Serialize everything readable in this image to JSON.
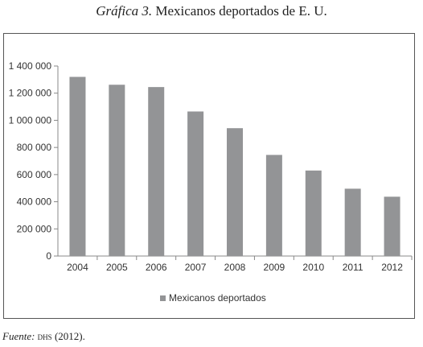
{
  "figure": {
    "label": "Gráfica 3.",
    "title": "Mexicanos deportados de E. U.",
    "source_label": "Fuente:",
    "source_org": "dhs",
    "source_year": "(2012)."
  },
  "chart_data": {
    "type": "bar",
    "categories": [
      "2004",
      "2005",
      "2006",
      "2007",
      "2008",
      "2009",
      "2010",
      "2011",
      "2012"
    ],
    "series": [
      {
        "name": "Mexicanos deportados",
        "values": [
          1320000,
          1262000,
          1245000,
          1065000,
          942000,
          745000,
          630000,
          496000,
          437000
        ],
        "color": "#939496"
      }
    ],
    "y_ticks": [
      "0",
      "200 000",
      "400 000",
      "600 000",
      "800 000",
      "1 000 000",
      "1 200 000",
      "1 400 000"
    ],
    "ylim": [
      0,
      1400000
    ],
    "grid": false,
    "legend": "bottom"
  }
}
